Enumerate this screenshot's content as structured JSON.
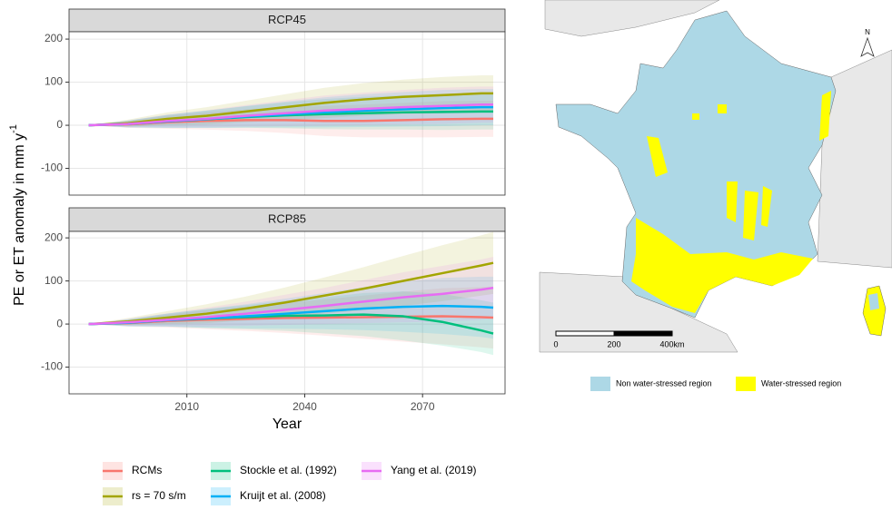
{
  "chart_data": [
    {
      "type": "line",
      "title": "RCP45",
      "ylabel": "PE or ET anomaly in mm y",
      "ylabel_superscript": "-1",
      "x": [
        1985,
        1995,
        2005,
        2015,
        2025,
        2035,
        2045,
        2055,
        2065,
        2075,
        2085,
        2088
      ],
      "xlim": [
        1980,
        2091
      ],
      "xticks": [
        2010,
        2040,
        2070
      ],
      "ylim": [
        -162,
        217
      ],
      "yticks": [
        -100,
        0,
        100,
        200
      ],
      "grid": true,
      "series": [
        {
          "name": "RCMs",
          "color": "#F8766D",
          "values": [
            0,
            2,
            7,
            10,
            12,
            12,
            10,
            10,
            12,
            14,
            15,
            15
          ],
          "upper": [
            0,
            10,
            22,
            30,
            37,
            42,
            45,
            48,
            52,
            56,
            57,
            57
          ],
          "lower": [
            0,
            -6,
            -8,
            -10,
            -13,
            -18,
            -25,
            -28,
            -28,
            -28,
            -27,
            -27
          ]
        },
        {
          "name": "rs = 70 s/m",
          "color": "#A3A500",
          "values": [
            0,
            5,
            15,
            22,
            32,
            42,
            52,
            60,
            66,
            70,
            74,
            74
          ],
          "upper": [
            0,
            13,
            30,
            42,
            57,
            72,
            87,
            98,
            106,
            112,
            116,
            116
          ],
          "lower": [
            0,
            -3,
            0,
            2,
            7,
            12,
            17,
            22,
            26,
            28,
            32,
            32
          ]
        },
        {
          "name": "Stockle et al. (1992)",
          "color": "#00BF7D",
          "values": [
            0,
            3,
            9,
            14,
            19,
            23,
            26,
            28,
            30,
            31,
            32,
            32
          ],
          "upper": [
            0,
            11,
            24,
            34,
            44,
            53,
            61,
            66,
            70,
            73,
            74,
            74
          ],
          "lower": [
            0,
            -5,
            -6,
            -6,
            -6,
            -7,
            -9,
            -10,
            -10,
            -11,
            -10,
            -10
          ]
        },
        {
          "name": "Kruijt et al. (2008)",
          "color": "#00B0F6",
          "values": [
            0,
            3,
            9,
            14,
            20,
            25,
            30,
            34,
            37,
            40,
            42,
            42
          ],
          "upper": [
            0,
            11,
            24,
            34,
            45,
            55,
            65,
            72,
            77,
            82,
            84,
            84
          ],
          "lower": [
            0,
            -5,
            -6,
            -6,
            -5,
            -5,
            -5,
            -4,
            -3,
            -2,
            0,
            0
          ]
        },
        {
          "name": "Yang et al. (2019)",
          "color": "#E76BF3",
          "values": [
            0,
            3,
            10,
            15,
            22,
            28,
            34,
            38,
            42,
            45,
            48,
            48
          ],
          "upper": [
            0,
            11,
            25,
            35,
            47,
            58,
            69,
            76,
            82,
            87,
            90,
            90
          ],
          "lower": [
            0,
            -5,
            -5,
            -5,
            -3,
            -2,
            -1,
            0,
            2,
            3,
            6,
            6
          ]
        }
      ]
    },
    {
      "type": "line",
      "title": "RCP85",
      "xlabel": "Year",
      "x": [
        1985,
        1995,
        2005,
        2015,
        2025,
        2035,
        2045,
        2055,
        2065,
        2075,
        2085,
        2088
      ],
      "xlim": [
        1980,
        2091
      ],
      "xticks": [
        2010,
        2040,
        2070
      ],
      "ylim": [
        -162,
        215
      ],
      "yticks": [
        -100,
        0,
        100,
        200
      ],
      "grid": true,
      "series": [
        {
          "color": "#F8766D",
          "values": [
            0,
            2,
            7,
            10,
            12,
            14,
            15,
            16,
            17,
            18,
            16,
            15
          ],
          "upper": [
            0,
            10,
            22,
            32,
            40,
            49,
            57,
            66,
            75,
            83,
            86,
            87
          ],
          "lower": [
            0,
            -6,
            -8,
            -12,
            -16,
            -21,
            -27,
            -34,
            -41,
            -47,
            -54,
            -57
          ]
        },
        {
          "color": "#A3A500",
          "values": [
            0,
            6,
            15,
            24,
            36,
            50,
            66,
            82,
            100,
            118,
            136,
            142
          ],
          "upper": [
            0,
            14,
            30,
            46,
            64,
            85,
            108,
            132,
            158,
            183,
            206,
            214
          ],
          "lower": [
            0,
            -2,
            0,
            2,
            8,
            15,
            24,
            32,
            42,
            53,
            66,
            70
          ]
        },
        {
          "color": "#00BF7D",
          "values": [
            0,
            3,
            9,
            13,
            16,
            19,
            20,
            22,
            18,
            5,
            -15,
            -22
          ],
          "upper": [
            0,
            11,
            24,
            35,
            44,
            54,
            62,
            72,
            76,
            70,
            55,
            50
          ],
          "lower": [
            0,
            -5,
            -6,
            -9,
            -12,
            -16,
            -22,
            -28,
            -38,
            -50,
            -65,
            -72
          ]
        },
        {
          "color": "#00B0F6",
          "values": [
            0,
            3,
            9,
            13,
            18,
            24,
            30,
            36,
            40,
            42,
            40,
            38
          ],
          "upper": [
            0,
            11,
            24,
            35,
            46,
            59,
            72,
            86,
            98,
            107,
            110,
            110
          ],
          "lower": [
            0,
            -5,
            -6,
            -9,
            -10,
            -11,
            -12,
            -14,
            -18,
            -23,
            -30,
            -34
          ]
        },
        {
          "color": "#E76BF3",
          "values": [
            0,
            4,
            10,
            16,
            24,
            33,
            42,
            52,
            62,
            70,
            80,
            84
          ],
          "upper": [
            0,
            12,
            25,
            38,
            52,
            68,
            84,
            102,
            120,
            135,
            150,
            156
          ],
          "lower": [
            0,
            -4,
            -5,
            -6,
            -4,
            -2,
            0,
            2,
            4,
            5,
            10,
            12
          ]
        }
      ]
    }
  ],
  "map": {
    "north": "N",
    "scale_labels": [
      "0",
      "200",
      "400km"
    ],
    "legend": [
      {
        "label": "Non water-stressed region",
        "color": "#ADD8E6"
      },
      {
        "label": "Water-stressed region",
        "color": "#FFFF00"
      }
    ]
  }
}
